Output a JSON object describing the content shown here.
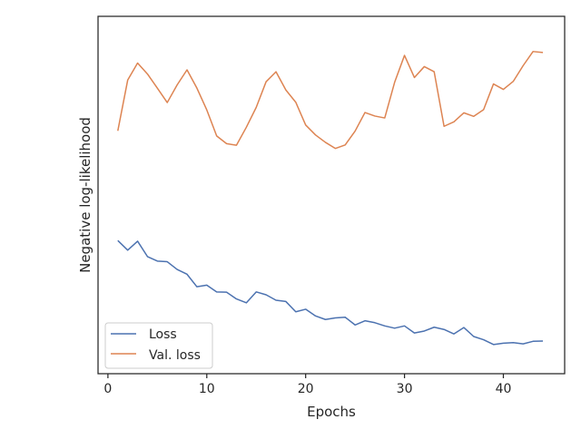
{
  "chart_data": {
    "type": "line",
    "title": "",
    "xlabel": "Epochs",
    "ylabel": "Negative log-likelihood",
    "xlim": [
      -1,
      46.2
    ],
    "ylim": [
      0,
      1
    ],
    "xticks": [
      0,
      10,
      20,
      30,
      40
    ],
    "xtick_labels": [
      "0",
      "10",
      "20",
      "30",
      "40"
    ],
    "yticks": [],
    "y_tick_labels_visible": false,
    "y_units_note": "y axis has no tick labels; values are relative 0–1 within the plotted range",
    "grid": false,
    "legend": {
      "position": "lower-left"
    },
    "x": [
      1,
      2,
      3,
      4,
      5,
      6,
      7,
      8,
      9,
      10,
      11,
      12,
      13,
      14,
      15,
      16,
      17,
      18,
      19,
      20,
      21,
      22,
      23,
      24,
      25,
      26,
      27,
      28,
      29,
      30,
      31,
      32,
      33,
      34,
      35,
      36,
      37,
      38,
      39,
      40,
      41,
      42,
      43,
      44
    ],
    "series": [
      {
        "name": "Loss",
        "color": "#4c72b0",
        "values": [
          0.367,
          0.337,
          0.365,
          0.317,
          0.303,
          0.301,
          0.277,
          0.262,
          0.223,
          0.228,
          0.207,
          0.206,
          0.185,
          0.173,
          0.207,
          0.198,
          0.181,
          0.177,
          0.145,
          0.153,
          0.132,
          0.121,
          0.126,
          0.128,
          0.104,
          0.117,
          0.111,
          0.101,
          0.094,
          0.101,
          0.079,
          0.085,
          0.097,
          0.09,
          0.076,
          0.096,
          0.068,
          0.058,
          0.043,
          0.047,
          0.049,
          0.045,
          0.053,
          0.054
        ]
      },
      {
        "name": "Val. loss",
        "color": "#dd8452",
        "values": [
          0.709,
          0.867,
          0.92,
          0.886,
          0.842,
          0.797,
          0.852,
          0.899,
          0.842,
          0.774,
          0.693,
          0.669,
          0.664,
          0.72,
          0.782,
          0.862,
          0.893,
          0.836,
          0.798,
          0.727,
          0.696,
          0.673,
          0.654,
          0.665,
          0.708,
          0.766,
          0.755,
          0.749,
          0.86,
          0.944,
          0.875,
          0.909,
          0.893,
          0.723,
          0.737,
          0.765,
          0.754,
          0.775,
          0.855,
          0.838,
          0.863,
          0.912,
          0.956,
          0.953
        ]
      }
    ]
  }
}
